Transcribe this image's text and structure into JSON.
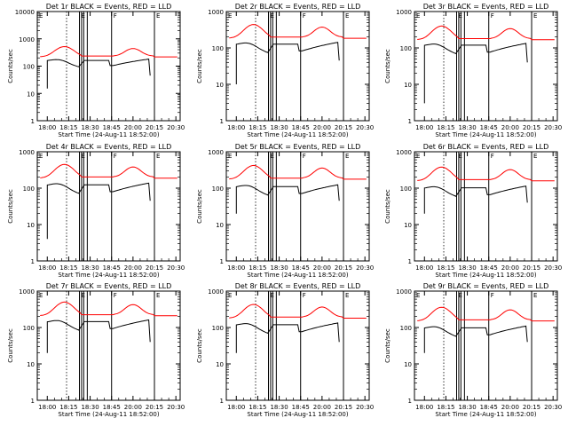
{
  "chart_data": {
    "type": "line",
    "layout": "3x3 grid",
    "y_scale": "log",
    "colors": {
      "events": "#000000",
      "lld": "#ff0000",
      "axes": "#000000",
      "background": "#ffffff"
    },
    "shared": {
      "xlabel": "Start Time (24-Aug-11 18:52:00)",
      "ylabel": "Counts/sec",
      "x_tick_labels": [
        "18:00",
        "18:15",
        "18:30",
        "18:45",
        "20:00",
        "20:15",
        "20:30"
      ],
      "y_tick_labels": [
        "1",
        "10",
        "100",
        "1000",
        "10000"
      ],
      "x_ticks": [
        0,
        15,
        30,
        45,
        60,
        75,
        90
      ],
      "xlim": [
        -7,
        93
      ],
      "flag_labels": [
        "E",
        "F",
        "E"
      ],
      "flag_positions": [
        22.5,
        45,
        75
      ],
      "dotted_line_x": 13.5,
      "vertical_lines_x": [
        22.5,
        24,
        25.5,
        28,
        45,
        75
      ]
    },
    "panels": [
      {
        "title": "Det 1r  BLACK = Events, RED = LLD",
        "ylim": [
          1,
          10000
        ],
        "lld_peak": 520,
        "events_peak": 190,
        "events_start": 15,
        "events_dip": 45
      },
      {
        "title": "Det 2r  BLACK = Events, RED = LLD",
        "ylim": [
          1,
          1000
        ],
        "lld_peak": 440,
        "events_peak": 150,
        "events_start": 10,
        "events_dip": 45
      },
      {
        "title": "Det 3r  BLACK = Events, RED = LLD",
        "ylim": [
          1,
          1000
        ],
        "lld_peak": 400,
        "events_peak": 140,
        "events_start": 3,
        "events_dip": 40
      },
      {
        "title": "Det 4r  BLACK = Events, RED = LLD",
        "ylim": [
          1,
          1000
        ],
        "lld_peak": 450,
        "events_peak": 145,
        "events_start": 4,
        "events_dip": 45
      },
      {
        "title": "Det 5r  BLACK = Events, RED = LLD",
        "ylim": [
          1,
          1000
        ],
        "lld_peak": 420,
        "events_peak": 130,
        "events_start": 20,
        "events_dip": 45
      },
      {
        "title": "Det 6r  BLACK = Events, RED = LLD",
        "ylim": [
          1,
          1000
        ],
        "lld_peak": 380,
        "events_peak": 120,
        "events_start": 20,
        "events_dip": 40
      },
      {
        "title": "Det 7r  BLACK = Events, RED = LLD",
        "ylim": [
          1,
          1000
        ],
        "lld_peak": 500,
        "events_peak": 170,
        "events_start": 20,
        "events_dip": 40
      },
      {
        "title": "Det 8r  BLACK = Events, RED = LLD",
        "ylim": [
          1,
          1000
        ],
        "lld_peak": 430,
        "events_peak": 140,
        "events_start": 20,
        "events_dip": 40
      },
      {
        "title": "Det 9r  BLACK = Events, RED = LLD",
        "ylim": [
          1,
          1000
        ],
        "lld_peak": 360,
        "events_peak": 115,
        "events_start": 20,
        "events_dip": 40
      }
    ]
  }
}
